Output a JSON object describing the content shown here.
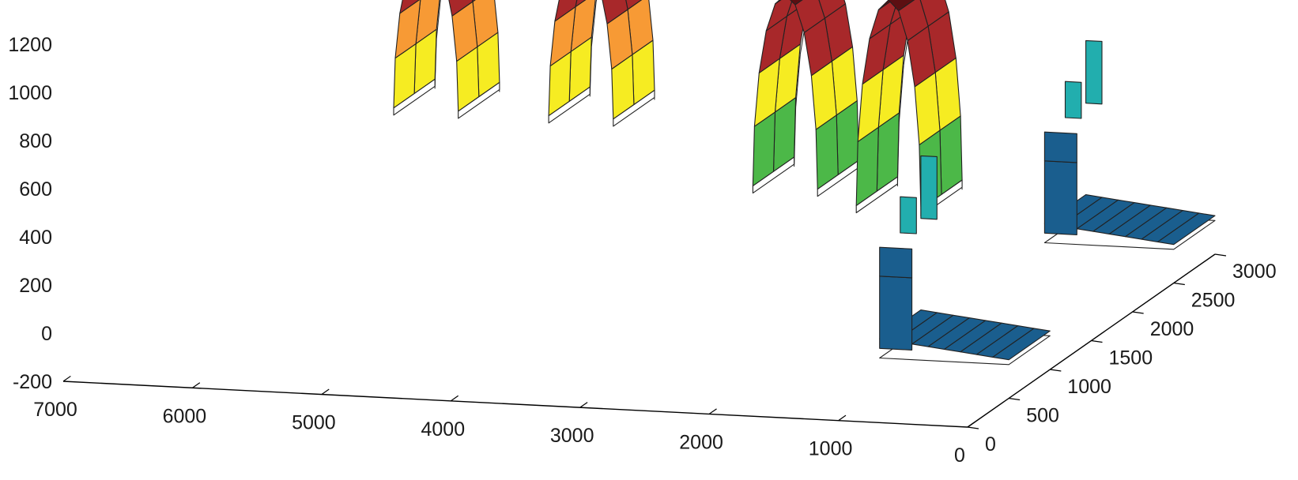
{
  "chart_data": {
    "type": "surface-3d",
    "title": "",
    "xlabel": "",
    "ylabel": "",
    "zlabel": "",
    "grid": false,
    "legend": "none",
    "axes": {
      "x": {
        "range": [
          0,
          7000
        ],
        "ticks": [
          7000,
          6000,
          5000,
          4000,
          3000,
          2000,
          1000,
          0
        ]
      },
      "y": {
        "range": [
          0,
          3000
        ],
        "ticks": [
          0,
          500,
          1000,
          1500,
          2000,
          2500,
          3000
        ]
      },
      "z": {
        "range": [
          -200,
          1200
        ],
        "ticks": [
          1200,
          1000,
          800,
          600,
          400,
          200,
          0,
          -200
        ]
      }
    },
    "colormap": [
      "#1a5e8e",
      "#22aeae",
      "#4cb848",
      "#f6ec22",
      "#f79a35",
      "#a8282a",
      "#5c0f12"
    ],
    "objects": [
      {
        "name": "",
        "kind": "arch",
        "x_range": [
          5400,
          4900
        ],
        "y_range": [
          1500,
          2000
        ],
        "z_base": 620,
        "z_top": 1290
      },
      {
        "name": "",
        "kind": "arch",
        "x_range": [
          4200,
          3700
        ],
        "y_range": [
          1500,
          2000
        ],
        "z_base": 620,
        "z_top": 1290
      },
      {
        "name": "",
        "kind": "arch",
        "x_range": [
          2300,
          1800
        ],
        "y_range": [
          1000,
          1500
        ],
        "z_base": 500,
        "z_top": 1300
      },
      {
        "name": "",
        "kind": "arch",
        "x_range": [
          1500,
          1000
        ],
        "y_range": [
          1000,
          1500
        ],
        "z_base": 440,
        "z_top": 1300
      },
      {
        "name": "",
        "kind": "step",
        "x_range": [
          0,
          1000
        ],
        "y_range": [
          2500,
          3000
        ],
        "z_low": 0,
        "z_high": 400
      },
      {
        "name": "",
        "kind": "step",
        "x_range": [
          0,
          1000
        ],
        "y_range": [
          500,
          1000
        ],
        "z_low": 0,
        "z_high": 400
      }
    ]
  }
}
